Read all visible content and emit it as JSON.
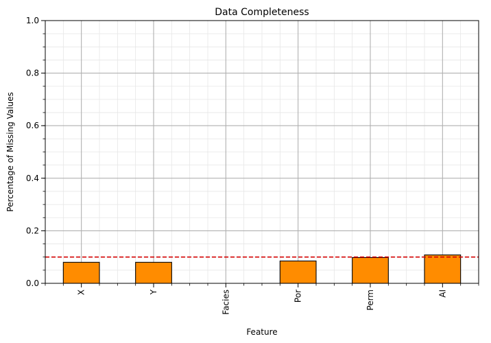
{
  "chart_data": {
    "type": "bar",
    "title": "Data Completeness",
    "xlabel": "Feature",
    "ylabel": "Percentage of Missing Values",
    "categories": [
      "X",
      "Y",
      "Facies",
      "Por",
      "Perm",
      "AI"
    ],
    "values": [
      0.08,
      0.08,
      0.0,
      0.085,
      0.098,
      0.108
    ],
    "ylim": [
      0,
      1.0
    ],
    "yticks": [
      "0.0",
      "0.2",
      "0.4",
      "0.6",
      "0.8",
      "1.0"
    ],
    "threshold": 0.1,
    "grid": true,
    "bar_color": "#ff8c00",
    "bar_edge_color": "#000000",
    "threshold_color": "#d40000",
    "grid_major_color": "#b0b0b0",
    "grid_minor_color": "#e6e6e6"
  }
}
